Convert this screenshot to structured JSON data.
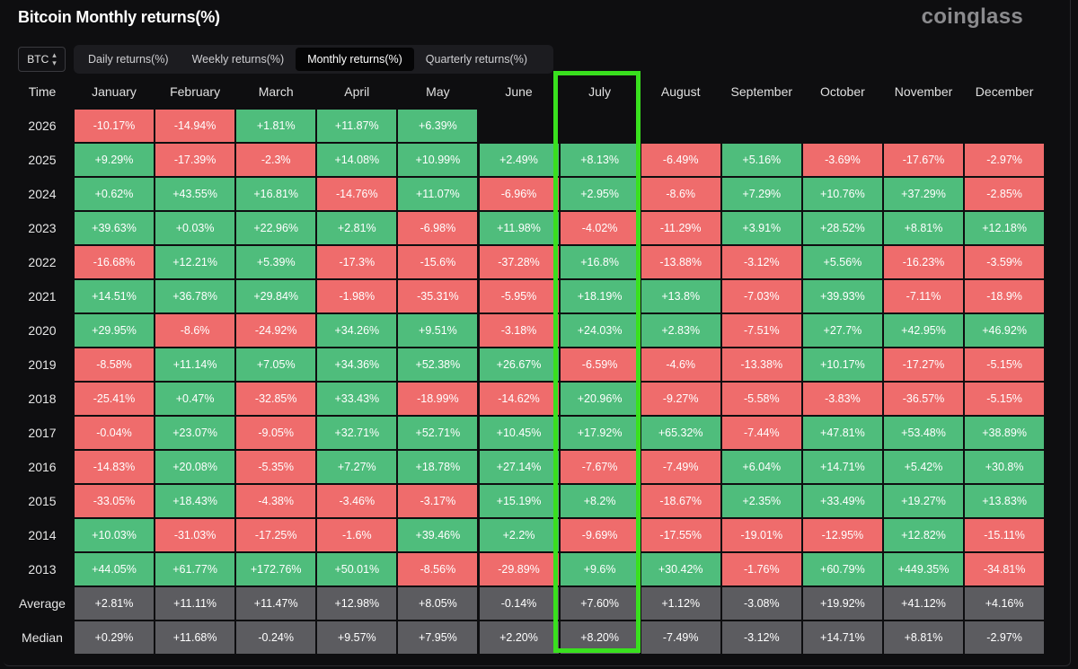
{
  "title": "Bitcoin Monthly returns(%)",
  "brand": "coinglass",
  "coin_select": {
    "value": "BTC"
  },
  "tabs": [
    {
      "label": "Daily returns(%)",
      "active": false
    },
    {
      "label": "Weekly returns(%)",
      "active": false
    },
    {
      "label": "Monthly returns(%)",
      "active": true
    },
    {
      "label": "Quarterly returns(%)",
      "active": false
    }
  ],
  "colors": {
    "positive": "#4fbd7c",
    "negative": "#ef6c6c",
    "aggregate": "#5c5c60",
    "highlight": "#39e01e"
  },
  "chart_data": {
    "type": "table",
    "title": "Bitcoin Monthly returns(%)",
    "corner_label": "Time",
    "columns": [
      "January",
      "February",
      "March",
      "April",
      "May",
      "June",
      "July",
      "August",
      "September",
      "October",
      "November",
      "December"
    ],
    "highlighted_column": "July",
    "rows": [
      {
        "label": "2026",
        "values": [
          "-10.17%",
          "-14.94%",
          "+1.81%",
          "+11.87%",
          "+6.39%",
          "",
          "",
          "",
          "",
          "",
          "",
          ""
        ]
      },
      {
        "label": "2025",
        "values": [
          "+9.29%",
          "-17.39%",
          "-2.3%",
          "+14.08%",
          "+10.99%",
          "+2.49%",
          "+8.13%",
          "-6.49%",
          "+5.16%",
          "-3.69%",
          "-17.67%",
          "-2.97%"
        ]
      },
      {
        "label": "2024",
        "values": [
          "+0.62%",
          "+43.55%",
          "+16.81%",
          "-14.76%",
          "+11.07%",
          "-6.96%",
          "+2.95%",
          "-8.6%",
          "+7.29%",
          "+10.76%",
          "+37.29%",
          "-2.85%"
        ]
      },
      {
        "label": "2023",
        "values": [
          "+39.63%",
          "+0.03%",
          "+22.96%",
          "+2.81%",
          "-6.98%",
          "+11.98%",
          "-4.02%",
          "-11.29%",
          "+3.91%",
          "+28.52%",
          "+8.81%",
          "+12.18%"
        ]
      },
      {
        "label": "2022",
        "values": [
          "-16.68%",
          "+12.21%",
          "+5.39%",
          "-17.3%",
          "-15.6%",
          "-37.28%",
          "+16.8%",
          "-13.88%",
          "-3.12%",
          "+5.56%",
          "-16.23%",
          "-3.59%"
        ]
      },
      {
        "label": "2021",
        "values": [
          "+14.51%",
          "+36.78%",
          "+29.84%",
          "-1.98%",
          "-35.31%",
          "-5.95%",
          "+18.19%",
          "+13.8%",
          "-7.03%",
          "+39.93%",
          "-7.11%",
          "-18.9%"
        ]
      },
      {
        "label": "2020",
        "values": [
          "+29.95%",
          "-8.6%",
          "-24.92%",
          "+34.26%",
          "+9.51%",
          "-3.18%",
          "+24.03%",
          "+2.83%",
          "-7.51%",
          "+27.7%",
          "+42.95%",
          "+46.92%"
        ]
      },
      {
        "label": "2019",
        "values": [
          "-8.58%",
          "+11.14%",
          "+7.05%",
          "+34.36%",
          "+52.38%",
          "+26.67%",
          "-6.59%",
          "-4.6%",
          "-13.38%",
          "+10.17%",
          "-17.27%",
          "-5.15%"
        ]
      },
      {
        "label": "2018",
        "values": [
          "-25.41%",
          "+0.47%",
          "-32.85%",
          "+33.43%",
          "-18.99%",
          "-14.62%",
          "+20.96%",
          "-9.27%",
          "-5.58%",
          "-3.83%",
          "-36.57%",
          "-5.15%"
        ]
      },
      {
        "label": "2017",
        "values": [
          "-0.04%",
          "+23.07%",
          "-9.05%",
          "+32.71%",
          "+52.71%",
          "+10.45%",
          "+17.92%",
          "+65.32%",
          "-7.44%",
          "+47.81%",
          "+53.48%",
          "+38.89%"
        ]
      },
      {
        "label": "2016",
        "values": [
          "-14.83%",
          "+20.08%",
          "-5.35%",
          "+7.27%",
          "+18.78%",
          "+27.14%",
          "-7.67%",
          "-7.49%",
          "+6.04%",
          "+14.71%",
          "+5.42%",
          "+30.8%"
        ]
      },
      {
        "label": "2015",
        "values": [
          "-33.05%",
          "+18.43%",
          "-4.38%",
          "-3.46%",
          "-3.17%",
          "+15.19%",
          "+8.2%",
          "-18.67%",
          "+2.35%",
          "+33.49%",
          "+19.27%",
          "+13.83%"
        ]
      },
      {
        "label": "2014",
        "values": [
          "+10.03%",
          "-31.03%",
          "-17.25%",
          "-1.6%",
          "+39.46%",
          "+2.2%",
          "-9.69%",
          "-17.55%",
          "-19.01%",
          "-12.95%",
          "+12.82%",
          "-15.11%"
        ]
      },
      {
        "label": "2013",
        "values": [
          "+44.05%",
          "+61.77%",
          "+172.76%",
          "+50.01%",
          "-8.56%",
          "-29.89%",
          "+9.6%",
          "+30.42%",
          "-1.76%",
          "+60.79%",
          "+449.35%",
          "-34.81%"
        ]
      }
    ],
    "summary_rows": [
      {
        "label": "Average",
        "values": [
          "+2.81%",
          "+11.11%",
          "+11.47%",
          "+12.98%",
          "+8.05%",
          "-0.14%",
          "+7.60%",
          "+1.12%",
          "-3.08%",
          "+19.92%",
          "+41.12%",
          "+4.16%"
        ]
      },
      {
        "label": "Median",
        "values": [
          "+0.29%",
          "+11.68%",
          "-0.24%",
          "+9.57%",
          "+7.95%",
          "+2.20%",
          "+8.20%",
          "-7.49%",
          "-3.12%",
          "+14.71%",
          "+8.81%",
          "-2.97%"
        ]
      }
    ]
  }
}
